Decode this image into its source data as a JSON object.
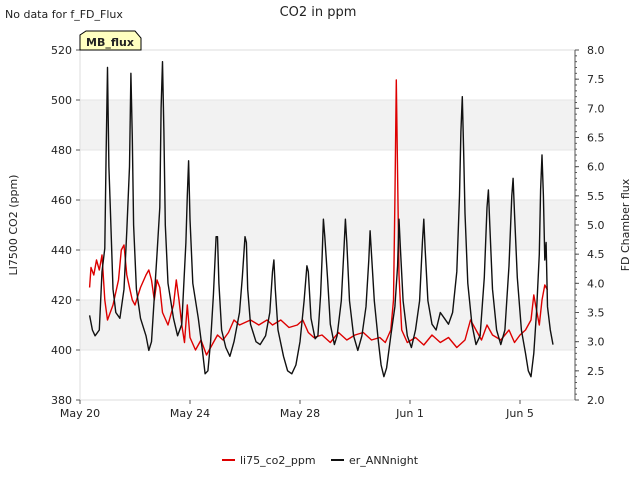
{
  "chart_data": {
    "type": "line",
    "title": "CO2 in ppm",
    "no_data_note": "No data for f_FD_Flux",
    "badge": "MB_flux",
    "ylabel_left": "LI7500 CO2 (ppm)",
    "ylabel_right": "FD Chamber flux",
    "ylim_left": [
      380,
      520
    ],
    "ylim_right": [
      2.0,
      8.0
    ],
    "yticks_left": [
      380,
      400,
      420,
      440,
      460,
      480,
      500,
      520
    ],
    "yticks_right": [
      2.0,
      2.5,
      3.0,
      3.5,
      4.0,
      4.5,
      5.0,
      5.5,
      6.0,
      6.5,
      7.0,
      7.5,
      8.0
    ],
    "xlim_days": [
      0,
      18
    ],
    "xticks": [
      {
        "day": 0,
        "label": "May 20"
      },
      {
        "day": 4,
        "label": "May 24"
      },
      {
        "day": 8,
        "label": "May 28"
      },
      {
        "day": 12,
        "label": "Jun 1"
      },
      {
        "day": 16,
        "label": "Jun 5"
      }
    ],
    "grid": "horizontal bands",
    "legend_position": "bottom-center",
    "series": [
      {
        "name": "li75_co2_ppm",
        "color": "#dd0000",
        "axis": "left",
        "points": [
          [
            0.35,
            425
          ],
          [
            0.4,
            433
          ],
          [
            0.5,
            430
          ],
          [
            0.6,
            436
          ],
          [
            0.7,
            432
          ],
          [
            0.8,
            438
          ],
          [
            0.9,
            420
          ],
          [
            1.0,
            412
          ],
          [
            1.2,
            418
          ],
          [
            1.4,
            428
          ],
          [
            1.5,
            440
          ],
          [
            1.6,
            442
          ],
          [
            1.7,
            430
          ],
          [
            1.8,
            425
          ],
          [
            1.9,
            420
          ],
          [
            2.0,
            418
          ],
          [
            2.2,
            425
          ],
          [
            2.4,
            430
          ],
          [
            2.5,
            432
          ],
          [
            2.6,
            428
          ],
          [
            2.7,
            420
          ],
          [
            2.8,
            428
          ],
          [
            2.9,
            425
          ],
          [
            3.0,
            415
          ],
          [
            3.2,
            410
          ],
          [
            3.4,
            418
          ],
          [
            3.5,
            428
          ],
          [
            3.6,
            420
          ],
          [
            3.7,
            410
          ],
          [
            3.8,
            403
          ],
          [
            3.9,
            418
          ],
          [
            4.0,
            405
          ],
          [
            4.2,
            400
          ],
          [
            4.4,
            404
          ],
          [
            4.6,
            398
          ],
          [
            4.8,
            402
          ],
          [
            5.0,
            406
          ],
          [
            5.2,
            404
          ],
          [
            5.4,
            407
          ],
          [
            5.6,
            412
          ],
          [
            5.8,
            410
          ],
          [
            6.0,
            411
          ],
          [
            6.2,
            412
          ],
          [
            6.5,
            410
          ],
          [
            6.8,
            412
          ],
          [
            7.0,
            410
          ],
          [
            7.3,
            412
          ],
          [
            7.6,
            409
          ],
          [
            7.9,
            410
          ],
          [
            8.1,
            412
          ],
          [
            8.3,
            407
          ],
          [
            8.5,
            405
          ],
          [
            8.8,
            406
          ],
          [
            9.1,
            403
          ],
          [
            9.4,
            407
          ],
          [
            9.7,
            404
          ],
          [
            10.0,
            406
          ],
          [
            10.3,
            407
          ],
          [
            10.6,
            404
          ],
          [
            10.9,
            405
          ],
          [
            11.1,
            403
          ],
          [
            11.3,
            408
          ],
          [
            11.4,
            420
          ],
          [
            11.45,
            460
          ],
          [
            11.5,
            508
          ],
          [
            11.55,
            470
          ],
          [
            11.6,
            430
          ],
          [
            11.7,
            408
          ],
          [
            11.9,
            403
          ],
          [
            12.2,
            405
          ],
          [
            12.5,
            402
          ],
          [
            12.8,
            406
          ],
          [
            13.1,
            403
          ],
          [
            13.4,
            405
          ],
          [
            13.7,
            401
          ],
          [
            14.0,
            404
          ],
          [
            14.2,
            412
          ],
          [
            14.4,
            408
          ],
          [
            14.6,
            404
          ],
          [
            14.8,
            410
          ],
          [
            15.0,
            406
          ],
          [
            15.3,
            404
          ],
          [
            15.6,
            408
          ],
          [
            15.8,
            403
          ],
          [
            16.0,
            406
          ],
          [
            16.2,
            408
          ],
          [
            16.4,
            412
          ],
          [
            16.5,
            422
          ],
          [
            16.6,
            416
          ],
          [
            16.7,
            410
          ],
          [
            16.8,
            420
          ],
          [
            16.9,
            426
          ],
          [
            17.0,
            424
          ]
        ]
      },
      {
        "name": "er_ANNnight",
        "color": "#111111",
        "axis": "right",
        "points": [
          [
            0.35,
            3.45
          ],
          [
            0.45,
            3.2
          ],
          [
            0.55,
            3.1
          ],
          [
            0.7,
            3.2
          ],
          [
            0.8,
            4.2
          ],
          [
            0.9,
            4.6
          ],
          [
            0.95,
            6.2
          ],
          [
            1.0,
            7.7
          ],
          [
            1.05,
            6.0
          ],
          [
            1.1,
            5.3
          ],
          [
            1.2,
            3.9
          ],
          [
            1.3,
            3.5
          ],
          [
            1.45,
            3.4
          ],
          [
            1.6,
            3.9
          ],
          [
            1.7,
            4.9
          ],
          [
            1.8,
            6.0
          ],
          [
            1.85,
            7.6
          ],
          [
            1.9,
            6.5
          ],
          [
            1.95,
            5.0
          ],
          [
            2.05,
            3.9
          ],
          [
            2.2,
            3.4
          ],
          [
            2.4,
            3.1
          ],
          [
            2.5,
            2.85
          ],
          [
            2.6,
            3.0
          ],
          [
            2.8,
            4.5
          ],
          [
            2.9,
            5.3
          ],
          [
            2.95,
            7.0
          ],
          [
            3.0,
            7.8
          ],
          [
            3.05,
            6.6
          ],
          [
            3.1,
            5.0
          ],
          [
            3.2,
            4.0
          ],
          [
            3.4,
            3.4
          ],
          [
            3.55,
            3.1
          ],
          [
            3.7,
            3.3
          ],
          [
            3.85,
            4.7
          ],
          [
            3.9,
            5.5
          ],
          [
            3.95,
            6.1
          ],
          [
            4.0,
            5.1
          ],
          [
            4.1,
            4.0
          ],
          [
            4.3,
            3.4
          ],
          [
            4.45,
            2.85
          ],
          [
            4.55,
            2.45
          ],
          [
            4.65,
            2.5
          ],
          [
            4.75,
            3.0
          ],
          [
            4.85,
            3.8
          ],
          [
            4.95,
            4.8
          ],
          [
            5.0,
            4.8
          ],
          [
            5.05,
            4.0
          ],
          [
            5.15,
            3.2
          ],
          [
            5.3,
            2.9
          ],
          [
            5.45,
            2.75
          ],
          [
            5.6,
            3.0
          ],
          [
            5.8,
            3.5
          ],
          [
            5.9,
            4.1
          ],
          [
            6.0,
            4.8
          ],
          [
            6.05,
            4.7
          ],
          [
            6.1,
            3.9
          ],
          [
            6.2,
            3.3
          ],
          [
            6.4,
            3.0
          ],
          [
            6.55,
            2.95
          ],
          [
            6.75,
            3.1
          ],
          [
            6.9,
            3.5
          ],
          [
            7.0,
            4.2
          ],
          [
            7.05,
            4.4
          ],
          [
            7.1,
            3.9
          ],
          [
            7.2,
            3.2
          ],
          [
            7.4,
            2.75
          ],
          [
            7.55,
            2.5
          ],
          [
            7.7,
            2.45
          ],
          [
            7.85,
            2.6
          ],
          [
            8.0,
            3.0
          ],
          [
            8.15,
            3.7
          ],
          [
            8.25,
            4.3
          ],
          [
            8.3,
            4.2
          ],
          [
            8.4,
            3.4
          ],
          [
            8.55,
            3.05
          ],
          [
            8.65,
            3.1
          ],
          [
            8.75,
            3.8
          ],
          [
            8.8,
            4.4
          ],
          [
            8.85,
            5.1
          ],
          [
            8.9,
            4.8
          ],
          [
            9.0,
            4.1
          ],
          [
            9.1,
            3.3
          ],
          [
            9.25,
            2.95
          ],
          [
            9.35,
            3.1
          ],
          [
            9.5,
            3.7
          ],
          [
            9.6,
            4.6
          ],
          [
            9.65,
            5.1
          ],
          [
            9.7,
            4.7
          ],
          [
            9.8,
            3.7
          ],
          [
            9.95,
            3.1
          ],
          [
            10.1,
            2.85
          ],
          [
            10.25,
            3.1
          ],
          [
            10.4,
            3.6
          ],
          [
            10.5,
            4.4
          ],
          [
            10.55,
            4.9
          ],
          [
            10.6,
            4.5
          ],
          [
            10.7,
            3.7
          ],
          [
            10.85,
            3.0
          ],
          [
            10.95,
            2.6
          ],
          [
            11.05,
            2.4
          ],
          [
            11.15,
            2.55
          ],
          [
            11.3,
            3.1
          ],
          [
            11.45,
            3.6
          ],
          [
            11.55,
            4.3
          ],
          [
            11.6,
            5.1
          ],
          [
            11.65,
            4.6
          ],
          [
            11.75,
            3.7
          ],
          [
            11.9,
            3.1
          ],
          [
            12.05,
            2.9
          ],
          [
            12.2,
            3.2
          ],
          [
            12.35,
            3.7
          ],
          [
            12.45,
            4.7
          ],
          [
            12.5,
            5.1
          ],
          [
            12.55,
            4.6
          ],
          [
            12.65,
            3.7
          ],
          [
            12.8,
            3.3
          ],
          [
            12.95,
            3.2
          ],
          [
            13.1,
            3.5
          ],
          [
            13.25,
            3.4
          ],
          [
            13.4,
            3.3
          ],
          [
            13.55,
            3.5
          ],
          [
            13.7,
            4.2
          ],
          [
            13.8,
            5.5
          ],
          [
            13.85,
            6.6
          ],
          [
            13.9,
            7.2
          ],
          [
            13.95,
            6.3
          ],
          [
            14.0,
            5.2
          ],
          [
            14.1,
            4.0
          ],
          [
            14.25,
            3.3
          ],
          [
            14.4,
            2.95
          ],
          [
            14.55,
            3.1
          ],
          [
            14.7,
            4.1
          ],
          [
            14.8,
            5.3
          ],
          [
            14.85,
            5.6
          ],
          [
            14.9,
            5.0
          ],
          [
            15.0,
            3.9
          ],
          [
            15.15,
            3.2
          ],
          [
            15.3,
            2.95
          ],
          [
            15.45,
            3.2
          ],
          [
            15.6,
            4.3
          ],
          [
            15.7,
            5.5
          ],
          [
            15.75,
            5.8
          ],
          [
            15.8,
            5.2
          ],
          [
            15.9,
            4.1
          ],
          [
            16.05,
            3.2
          ],
          [
            16.2,
            2.8
          ],
          [
            16.3,
            2.5
          ],
          [
            16.4,
            2.4
          ],
          [
            16.5,
            2.8
          ],
          [
            16.6,
            3.5
          ],
          [
            16.7,
            4.5
          ],
          [
            16.75,
            5.6
          ],
          [
            16.8,
            6.2
          ],
          [
            16.85,
            5.5
          ],
          [
            16.9,
            4.4
          ],
          [
            16.95,
            4.7
          ],
          [
            17.0,
            3.6
          ],
          [
            17.1,
            3.2
          ],
          [
            17.2,
            2.95
          ]
        ]
      }
    ]
  }
}
